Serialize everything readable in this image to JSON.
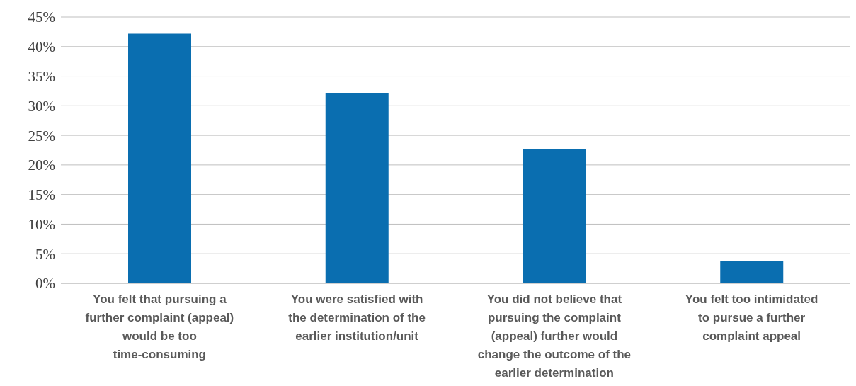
{
  "chart_data": {
    "type": "bar",
    "categories": [
      "You felt that pursuing a further complaint (appeal) would be too time-consuming",
      "You were satisfied with the determination of the earlier institution/unit",
      "You did not believe that pursuing the complaint (appeal) further would change the outcome of the earlier determination",
      "You felt too intimidated to pursue a further complaint appeal"
    ],
    "values": [
      42.2,
      32.2,
      22.7,
      3.7
    ],
    "color": "#0a6eb0",
    "ylim": [
      0,
      45
    ],
    "yticks": [
      {
        "value": 0,
        "label": "0%"
      },
      {
        "value": 5,
        "label": "5%"
      },
      {
        "value": 10,
        "label": "10%"
      },
      {
        "value": 15,
        "label": "15%"
      },
      {
        "value": 20,
        "label": "20%"
      },
      {
        "value": 25,
        "label": "25%"
      },
      {
        "value": 30,
        "label": "30%"
      },
      {
        "value": 35,
        "label": "35%"
      },
      {
        "value": 40,
        "label": "40%"
      },
      {
        "value": 45,
        "label": "45%"
      }
    ],
    "grid": "y"
  }
}
